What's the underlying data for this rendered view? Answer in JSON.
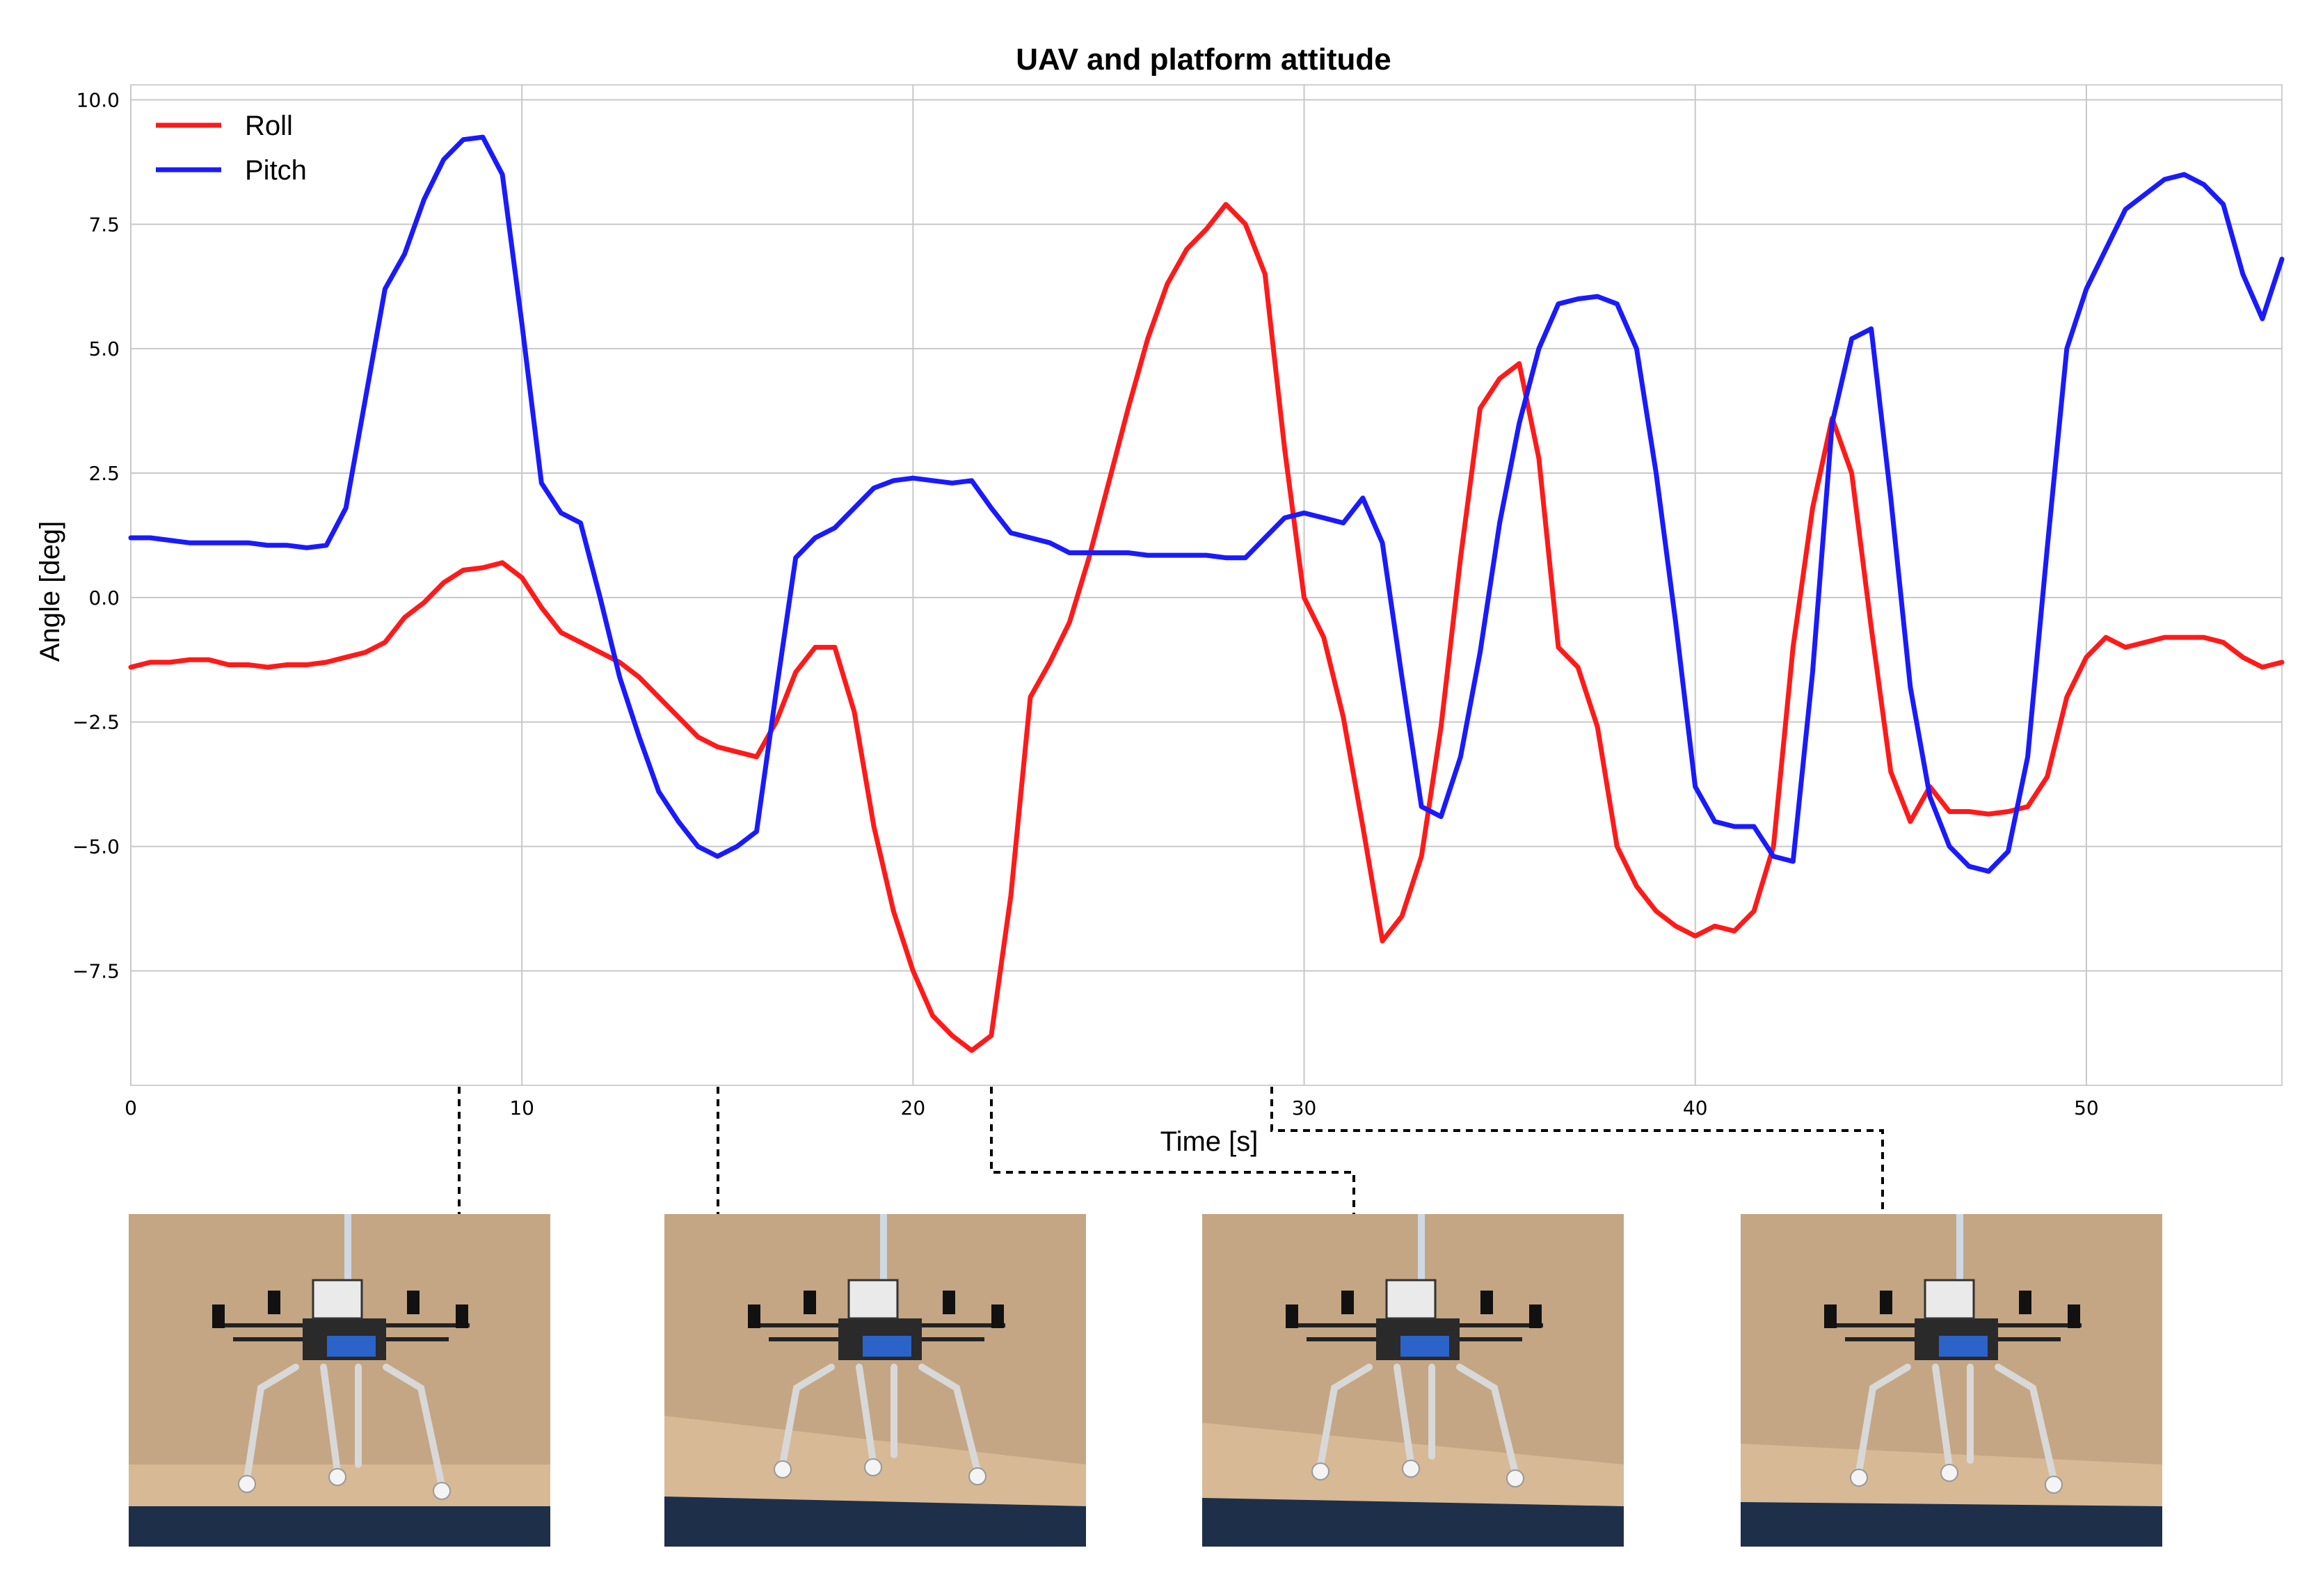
{
  "chart_data": {
    "type": "line",
    "title": "UAV and platform attitude",
    "xlabel": "Time [s]",
    "ylabel": "Angle [deg]",
    "xlim": [
      0,
      55
    ],
    "ylim": [
      -10.0,
      10.0
    ],
    "xticks": [
      0,
      10,
      20,
      30,
      40,
      50
    ],
    "xtick_labels": [
      "0",
      "10",
      "20",
      "30",
      "40",
      "50"
    ],
    "yticks": [
      10.0,
      7.5,
      5.0,
      2.5,
      0.0,
      -2.5,
      -5.0,
      -7.5
    ],
    "ytick_labels": [
      "10.0",
      "7.5",
      "5.0",
      "2.5",
      "0.0",
      "−2.5",
      "−5.0",
      "−7.5"
    ],
    "grid": true,
    "legend_position": "top-left",
    "series": [
      {
        "name": "Roll",
        "color": "#ff1a1a",
        "x": [
          0,
          0.5,
          1,
          1.5,
          2,
          2.5,
          3,
          3.5,
          4,
          4.5,
          5,
          5.5,
          6,
          6.5,
          7,
          7.5,
          8,
          8.5,
          9,
          9.5,
          10,
          10.5,
          11,
          11.5,
          12,
          12.5,
          13,
          13.5,
          14,
          14.5,
          15,
          15.5,
          16,
          16.5,
          17,
          17.5,
          18,
          18.5,
          19,
          19.5,
          20,
          20.5,
          21,
          21.5,
          22,
          22.5,
          23,
          23.5,
          24,
          24.5,
          25,
          25.5,
          26,
          26.5,
          27,
          27.5,
          28,
          28.5,
          29,
          29.5,
          30,
          30.5,
          31,
          31.5,
          32,
          32.5,
          33,
          33.5,
          34,
          34.5,
          35,
          35.5,
          36,
          36.5,
          37,
          37.5,
          38,
          38.5,
          39,
          39.5,
          40,
          40.5,
          41,
          41.5,
          42,
          42.5,
          43,
          43.5,
          44,
          44.5,
          45,
          45.5,
          46,
          46.5,
          47,
          47.5,
          48,
          48.5,
          49,
          49.5,
          50,
          50.5,
          51,
          51.5,
          52,
          52.5,
          53,
          53.5,
          54,
          54.5,
          55
        ],
        "y": [
          -1.4,
          -1.3,
          -1.3,
          -1.25,
          -1.25,
          -1.35,
          -1.35,
          -1.4,
          -1.35,
          -1.35,
          -1.3,
          -1.2,
          -1.1,
          -0.9,
          -0.4,
          -0.1,
          0.3,
          0.55,
          0.6,
          0.7,
          0.4,
          -0.2,
          -0.7,
          -0.9,
          -1.1,
          -1.3,
          -1.6,
          -2.0,
          -2.4,
          -2.8,
          -3.0,
          -3.1,
          -3.2,
          -2.5,
          -1.5,
          -1.0,
          -1.0,
          -2.3,
          -4.6,
          -6.3,
          -7.5,
          -8.4,
          -8.8,
          -9.1,
          -8.8,
          -6.0,
          -2.0,
          -1.3,
          -0.5,
          0.8,
          2.3,
          3.8,
          5.2,
          6.3,
          7.0,
          7.4,
          7.9,
          7.5,
          6.5,
          3.0,
          0.0,
          -0.8,
          -2.4,
          -4.6,
          -6.9,
          -6.4,
          -5.2,
          -2.6,
          0.8,
          3.8,
          4.4,
          4.7,
          2.8,
          -1.0,
          -1.4,
          -2.6,
          -5.0,
          -5.8,
          -6.3,
          -6.6,
          -6.8,
          -6.6,
          -6.7,
          -6.3,
          -5.0,
          -1.0,
          1.8,
          3.6,
          2.5,
          -0.6,
          -3.5,
          -4.5,
          -3.8,
          -4.3,
          -4.3,
          -4.35,
          -4.3,
          -4.2,
          -3.6,
          -2.0,
          -1.2,
          -0.8,
          -1.0,
          -0.9,
          -0.8,
          -0.8,
          -0.8,
          -0.9,
          -1.2,
          -1.4,
          -1.3
        ],
        "label_text": "Roll"
      },
      {
        "name": "Pitch",
        "color": "#1a1aff",
        "x": [
          0,
          0.5,
          1,
          1.5,
          2,
          2.5,
          3,
          3.5,
          4,
          4.5,
          5,
          5.5,
          6,
          6.5,
          7,
          7.5,
          8,
          8.5,
          9,
          9.5,
          10,
          10.5,
          11,
          11.5,
          12,
          12.5,
          13,
          13.5,
          14,
          14.5,
          15,
          15.5,
          16,
          16.5,
          17,
          17.5,
          18,
          18.5,
          19,
          19.5,
          20,
          20.5,
          21,
          21.5,
          22,
          22.5,
          23,
          23.5,
          24,
          24.5,
          25,
          25.5,
          26,
          26.5,
          27,
          27.5,
          28,
          28.5,
          29,
          29.5,
          30,
          30.5,
          31,
          31.5,
          32,
          32.5,
          33,
          33.5,
          34,
          34.5,
          35,
          35.5,
          36,
          36.5,
          37,
          37.5,
          38,
          38.5,
          39,
          39.5,
          40,
          40.5,
          41,
          41.5,
          42,
          42.5,
          43,
          43.5,
          44,
          44.5,
          45,
          45.5,
          46,
          46.5,
          47,
          47.5,
          48,
          48.5,
          49,
          49.5,
          50,
          50.5,
          51,
          51.5,
          52,
          52.5,
          53,
          53.5,
          54,
          54.5,
          55
        ],
        "y": [
          1.2,
          1.2,
          1.15,
          1.1,
          1.1,
          1.1,
          1.1,
          1.05,
          1.05,
          1.0,
          1.05,
          1.8,
          4.0,
          6.2,
          6.9,
          8.0,
          8.8,
          9.2,
          9.25,
          8.5,
          5.5,
          2.3,
          1.7,
          1.5,
          0.0,
          -1.6,
          -2.8,
          -3.9,
          -4.5,
          -5.0,
          -5.2,
          -5.0,
          -4.7,
          -1.9,
          0.8,
          1.2,
          1.4,
          1.8,
          2.2,
          2.35,
          2.4,
          2.35,
          2.3,
          2.35,
          1.8,
          1.3,
          1.2,
          1.1,
          0.9,
          0.9,
          0.9,
          0.9,
          0.85,
          0.85,
          0.85,
          0.85,
          0.8,
          0.8,
          1.2,
          1.6,
          1.7,
          1.6,
          1.5,
          2.0,
          1.1,
          -1.6,
          -4.2,
          -4.4,
          -3.2,
          -1.1,
          1.5,
          3.5,
          5.0,
          5.9,
          6.0,
          6.05,
          5.9,
          5.0,
          2.5,
          -0.5,
          -3.8,
          -4.5,
          -4.6,
          -4.6,
          -5.2,
          -5.3,
          -1.5,
          3.5,
          5.2,
          5.4,
          2.0,
          -1.8,
          -4.0,
          -5.0,
          -5.4,
          -5.5,
          -5.1,
          -3.2,
          1.0,
          5.0,
          6.2,
          7.0,
          7.8,
          8.1,
          8.4,
          8.5,
          8.3,
          7.9,
          6.5,
          5.6,
          6.8
        ],
        "label_text": "Pitch"
      }
    ],
    "photos": [
      {
        "name": "photo-1",
        "caption": ""
      },
      {
        "name": "photo-2",
        "caption": ""
      },
      {
        "name": "photo-3",
        "caption": ""
      },
      {
        "name": "photo-4",
        "caption": ""
      }
    ]
  }
}
